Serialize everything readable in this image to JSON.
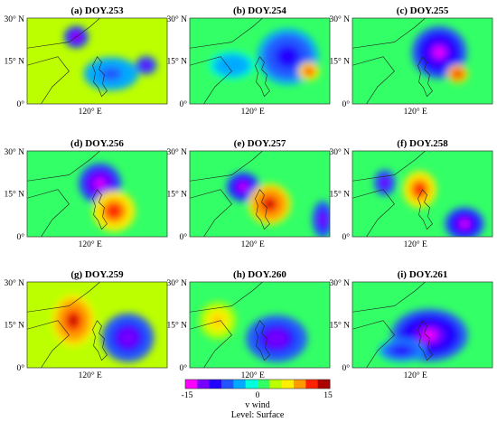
{
  "chart_data": {
    "type": "heatmap",
    "panel_labels": [
      "(a) DOY.253",
      "(b) DOY.254",
      "(c) DOY.255",
      "(d) DOY.256",
      "(e) DOY.257",
      "(f) DOY.258",
      "(g) DOY.259",
      "(h) DOY.260",
      "(i) DOY.261"
    ],
    "y_ticks": [
      "30° N",
      "15° N",
      "0°"
    ],
    "x_ticks": [
      "120° E"
    ],
    "ylim": [
      0,
      30
    ],
    "colorbar": {
      "min": -15,
      "max": 15,
      "tick_labels": [
        "-15",
        "0",
        "15"
      ],
      "label": "v wind",
      "sublabel": "Level: Surface",
      "colors": [
        "#ff00ff",
        "#7700ff",
        "#2200ff",
        "#2255ff",
        "#00aaff",
        "#00ffdd",
        "#33ff66",
        "#bbff00",
        "#ffee00",
        "#ff9900",
        "#ff2200",
        "#aa0000"
      ]
    },
    "panels": [
      {
        "label": "(a) DOY.253",
        "bg": 0.05,
        "features": [
          {
            "x": 0.35,
            "y": 0.22,
            "v": -13,
            "rx": 0.08,
            "ry": 0.12
          },
          {
            "x": 0.6,
            "y": 0.65,
            "v": -6,
            "rx": 0.18,
            "ry": 0.18
          },
          {
            "x": 0.85,
            "y": 0.55,
            "v": -12,
            "rx": 0.07,
            "ry": 0.1
          }
        ]
      },
      {
        "label": "(b) DOY.254",
        "bg": 0.0,
        "features": [
          {
            "x": 0.7,
            "y": 0.45,
            "v": -10,
            "rx": 0.2,
            "ry": 0.3
          },
          {
            "x": 0.85,
            "y": 0.62,
            "v": 12,
            "rx": 0.07,
            "ry": 0.1
          },
          {
            "x": 0.3,
            "y": 0.55,
            "v": -5,
            "rx": 0.15,
            "ry": 0.15
          }
        ]
      },
      {
        "label": "(c) DOY.255",
        "bg": 0.0,
        "features": [
          {
            "x": 0.62,
            "y": 0.4,
            "v": -13,
            "rx": 0.18,
            "ry": 0.28
          },
          {
            "x": 0.75,
            "y": 0.65,
            "v": 13,
            "rx": 0.07,
            "ry": 0.1
          }
        ]
      },
      {
        "label": "(d) DOY.256",
        "bg": 0.0,
        "features": [
          {
            "x": 0.52,
            "y": 0.38,
            "v": -14,
            "rx": 0.14,
            "ry": 0.22
          },
          {
            "x": 0.62,
            "y": 0.7,
            "v": 12,
            "rx": 0.14,
            "ry": 0.22
          }
        ]
      },
      {
        "label": "(e) DOY.257",
        "bg": 0.0,
        "features": [
          {
            "x": 0.38,
            "y": 0.42,
            "v": -13,
            "rx": 0.11,
            "ry": 0.16
          },
          {
            "x": 0.57,
            "y": 0.62,
            "v": 13,
            "rx": 0.14,
            "ry": 0.22
          },
          {
            "x": 0.95,
            "y": 0.8,
            "v": -12,
            "rx": 0.07,
            "ry": 0.2
          }
        ]
      },
      {
        "label": "(f) DOY.258",
        "bg": 0.0,
        "features": [
          {
            "x": 0.23,
            "y": 0.37,
            "v": -12,
            "rx": 0.07,
            "ry": 0.14
          },
          {
            "x": 0.48,
            "y": 0.45,
            "v": 12,
            "rx": 0.11,
            "ry": 0.2
          },
          {
            "x": 0.8,
            "y": 0.85,
            "v": -13,
            "rx": 0.13,
            "ry": 0.18
          }
        ]
      },
      {
        "label": "(g) DOY.259",
        "bg": 0.15,
        "features": [
          {
            "x": 0.33,
            "y": 0.45,
            "v": 13,
            "rx": 0.14,
            "ry": 0.28
          },
          {
            "x": 0.72,
            "y": 0.65,
            "v": -12,
            "rx": 0.17,
            "ry": 0.26
          }
        ]
      },
      {
        "label": "(h) DOY.260",
        "bg": -0.05,
        "features": [
          {
            "x": 0.2,
            "y": 0.45,
            "v": 8,
            "rx": 0.12,
            "ry": 0.2
          },
          {
            "x": 0.62,
            "y": 0.66,
            "v": -12,
            "rx": 0.2,
            "ry": 0.25
          }
        ]
      },
      {
        "label": "(i) DOY.261",
        "bg": -0.1,
        "features": [
          {
            "x": 0.55,
            "y": 0.62,
            "v": -13,
            "rx": 0.25,
            "ry": 0.28
          },
          {
            "x": 0.35,
            "y": 0.8,
            "v": -9,
            "rx": 0.15,
            "ry": 0.12
          }
        ]
      }
    ]
  }
}
